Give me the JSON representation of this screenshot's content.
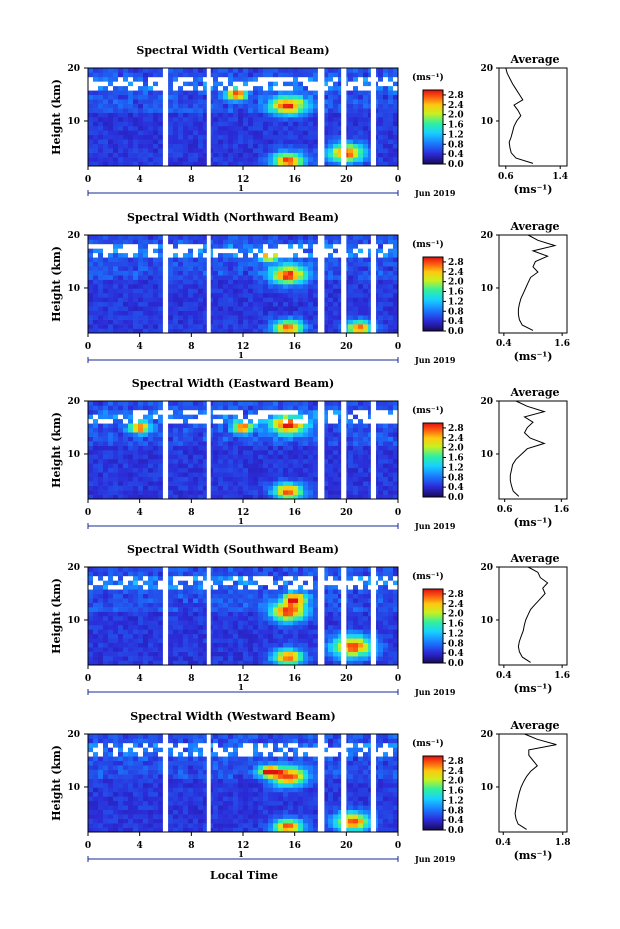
{
  "figure": {
    "x_label": "Local Time",
    "date_label": "Jun 2019",
    "day_label": "1"
  },
  "chart_data": [
    {
      "type": "heatmap",
      "title": "Spectral Width (Vertical Beam)",
      "xlabel": "Local Time",
      "ylabel": "Height (km)",
      "x_ticks": [
        "0",
        "4",
        "8",
        "12",
        "16",
        "20",
        "0"
      ],
      "y_ticks": [
        "10",
        "20"
      ],
      "xlim": [
        0,
        24
      ],
      "ylim": [
        1.5,
        20
      ],
      "colorbar": {
        "label": "(ms⁻¹)",
        "ticks": [
          "0.0",
          "0.4",
          "0.8",
          "1.2",
          "1.6",
          "2.0",
          "2.4",
          "2.8"
        ],
        "range": [
          0,
          3.0
        ]
      },
      "data_gaps_hours": [
        [
          5.8,
          6.2
        ],
        [
          9.2,
          9.5
        ],
        [
          17.8,
          18.3
        ],
        [
          19.6,
          20.0
        ],
        [
          21.9,
          22.3
        ]
      ],
      "profile": {
        "title": "Average",
        "xlabel": "(ms⁻¹)",
        "x_ticks": [
          "0.6",
          "1.4"
        ],
        "xlim": [
          0.5,
          1.5
        ],
        "y_ticks": [
          "10",
          "20"
        ],
        "height_km": [
          2,
          3,
          4,
          5,
          6,
          7,
          8,
          9,
          10,
          11,
          12,
          13,
          14,
          15,
          16,
          17,
          18,
          19,
          20
        ],
        "width_ms": [
          1.0,
          0.75,
          0.68,
          0.66,
          0.65,
          0.68,
          0.7,
          0.72,
          0.76,
          0.82,
          0.78,
          0.72,
          0.85,
          0.8,
          0.75,
          0.7,
          0.66,
          0.62,
          0.6
        ]
      }
    },
    {
      "type": "heatmap",
      "title": "Spectral Width (Northward Beam)",
      "xlabel": "Local Time",
      "ylabel": "Height (km)",
      "x_ticks": [
        "0",
        "4",
        "8",
        "12",
        "16",
        "20",
        "0"
      ],
      "y_ticks": [
        "10",
        "20"
      ],
      "xlim": [
        0,
        24
      ],
      "ylim": [
        1.5,
        20
      ],
      "colorbar": {
        "label": "(ms⁻¹)",
        "ticks": [
          "0.0",
          "0.4",
          "0.8",
          "1.2",
          "1.6",
          "2.0",
          "2.4",
          "2.8"
        ],
        "range": [
          0,
          3.0
        ]
      },
      "data_gaps_hours": [
        [
          5.8,
          6.2
        ],
        [
          9.2,
          9.5
        ],
        [
          17.8,
          18.3
        ],
        [
          19.6,
          20.0
        ],
        [
          21.9,
          22.3
        ]
      ],
      "profile": {
        "title": "Average",
        "xlabel": "(ms⁻¹)",
        "x_ticks": [
          "0.4",
          "1.6"
        ],
        "xlim": [
          0.3,
          1.7
        ],
        "y_ticks": [
          "10",
          "20"
        ],
        "height_km": [
          2,
          3,
          4,
          5,
          6,
          7,
          8,
          9,
          10,
          11,
          12,
          13,
          14,
          15,
          16,
          17,
          18,
          19,
          20
        ],
        "width_ms": [
          1.0,
          0.78,
          0.72,
          0.7,
          0.7,
          0.72,
          0.75,
          0.8,
          0.85,
          0.9,
          0.95,
          1.1,
          1.0,
          1.05,
          1.3,
          1.0,
          1.45,
          1.1,
          0.9
        ]
      }
    },
    {
      "type": "heatmap",
      "title": "Spectral Width (Eastward Beam)",
      "xlabel": "Local Time",
      "ylabel": "Height (km)",
      "x_ticks": [
        "0",
        "4",
        "8",
        "12",
        "16",
        "20",
        "0"
      ],
      "y_ticks": [
        "10",
        "20"
      ],
      "xlim": [
        0,
        24
      ],
      "ylim": [
        1.5,
        20
      ],
      "colorbar": {
        "label": "(ms⁻¹)",
        "ticks": [
          "0.0",
          "0.4",
          "0.8",
          "1.2",
          "1.6",
          "2.0",
          "2.4",
          "2.8"
        ],
        "range": [
          0,
          3.0
        ]
      },
      "data_gaps_hours": [
        [
          5.8,
          6.2
        ],
        [
          9.2,
          9.5
        ],
        [
          17.8,
          18.3
        ],
        [
          19.6,
          20.0
        ],
        [
          21.9,
          22.3
        ]
      ],
      "profile": {
        "title": "Average",
        "xlabel": "(ms⁻¹)",
        "x_ticks": [
          "0.6",
          "1.6"
        ],
        "xlim": [
          0.5,
          1.7
        ],
        "y_ticks": [
          "10",
          "20"
        ],
        "height_km": [
          2,
          3,
          4,
          5,
          6,
          7,
          8,
          9,
          10,
          11,
          12,
          13,
          14,
          15,
          16,
          17,
          18,
          19,
          20
        ],
        "width_ms": [
          0.85,
          0.75,
          0.72,
          0.7,
          0.7,
          0.72,
          0.74,
          0.8,
          0.9,
          1.0,
          1.3,
          1.05,
          0.95,
          1.0,
          1.1,
          0.95,
          1.3,
          1.0,
          0.8
        ]
      }
    },
    {
      "type": "heatmap",
      "title": "Spectral Width (Southward Beam)",
      "xlabel": "Local Time",
      "ylabel": "Height (km)",
      "x_ticks": [
        "0",
        "4",
        "8",
        "12",
        "16",
        "20",
        "0"
      ],
      "y_ticks": [
        "10",
        "20"
      ],
      "xlim": [
        0,
        24
      ],
      "ylim": [
        1.5,
        20
      ],
      "colorbar": {
        "label": "(ms⁻¹)",
        "ticks": [
          "0.0",
          "0.4",
          "0.8",
          "1.2",
          "1.6",
          "2.0",
          "2.4",
          "2.8"
        ],
        "range": [
          0,
          3.0
        ]
      },
      "data_gaps_hours": [
        [
          5.8,
          6.2
        ],
        [
          9.2,
          9.5
        ],
        [
          17.8,
          18.3
        ],
        [
          19.6,
          20.0
        ],
        [
          21.9,
          22.3
        ]
      ],
      "profile": {
        "title": "Average",
        "xlabel": "(ms⁻¹)",
        "x_ticks": [
          "0.4",
          "1.6"
        ],
        "xlim": [
          0.3,
          1.7
        ],
        "y_ticks": [
          "10",
          "20"
        ],
        "height_km": [
          2,
          3,
          4,
          5,
          6,
          7,
          8,
          9,
          10,
          11,
          12,
          13,
          14,
          15,
          16,
          17,
          18,
          19,
          20
        ],
        "width_ms": [
          0.95,
          0.78,
          0.72,
          0.7,
          0.72,
          0.76,
          0.8,
          0.82,
          0.85,
          0.9,
          0.95,
          1.05,
          1.15,
          1.25,
          1.2,
          1.3,
          1.15,
          1.1,
          0.9
        ]
      }
    },
    {
      "type": "heatmap",
      "title": "Spectral Width (Westward Beam)",
      "xlabel": "Local Time",
      "ylabel": "Height (km)",
      "x_ticks": [
        "0",
        "4",
        "8",
        "12",
        "16",
        "20",
        "0"
      ],
      "y_ticks": [
        "10",
        "20"
      ],
      "xlim": [
        0,
        24
      ],
      "ylim": [
        1.5,
        20
      ],
      "colorbar": {
        "label": "(ms⁻¹)",
        "ticks": [
          "0.0",
          "0.4",
          "0.8",
          "1.2",
          "1.6",
          "2.0",
          "2.4",
          "2.8"
        ],
        "range": [
          0,
          3.0
        ]
      },
      "data_gaps_hours": [
        [
          5.8,
          6.2
        ],
        [
          9.2,
          9.5
        ],
        [
          17.8,
          18.3
        ],
        [
          19.6,
          20.0
        ],
        [
          21.9,
          22.3
        ]
      ],
      "profile": {
        "title": "Average",
        "xlabel": "(ms⁻¹)",
        "x_ticks": [
          "0.4",
          "1.8"
        ],
        "xlim": [
          0.3,
          1.9
        ],
        "y_ticks": [
          "10",
          "20"
        ],
        "height_km": [
          2,
          3,
          4,
          5,
          6,
          7,
          8,
          9,
          10,
          11,
          12,
          13,
          14,
          15,
          16,
          17,
          18,
          19,
          20
        ],
        "width_ms": [
          0.95,
          0.75,
          0.7,
          0.68,
          0.7,
          0.72,
          0.75,
          0.78,
          0.82,
          0.88,
          0.95,
          1.05,
          1.2,
          1.1,
          1.0,
          1.0,
          1.65,
          1.2,
          0.9
        ]
      }
    }
  ]
}
